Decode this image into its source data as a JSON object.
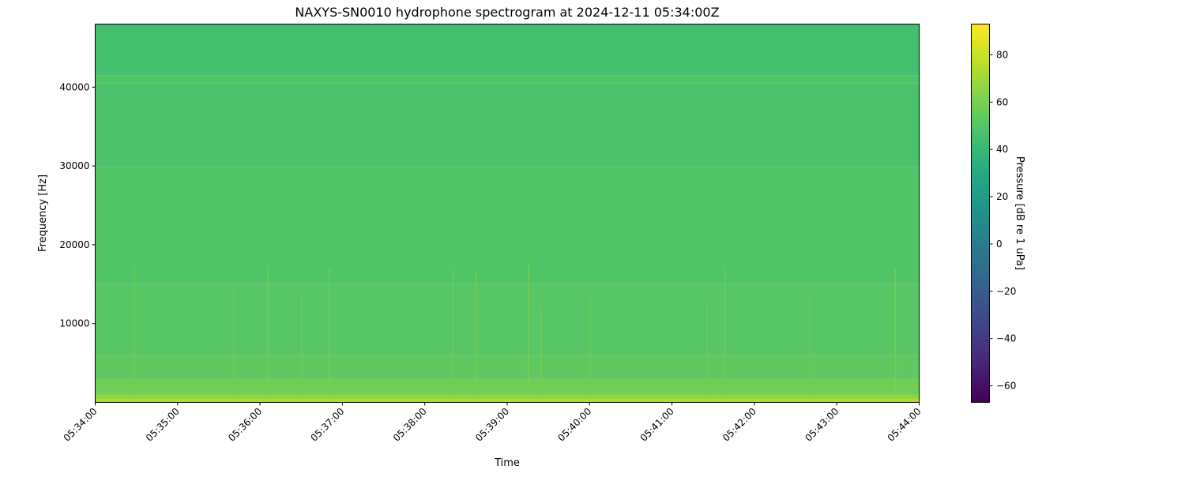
{
  "chart_data": {
    "type": "heatmap",
    "title": "NAXYS-SN0010 hydrophone spectrogram at 2024-12-11 05:34:00Z",
    "xlabel": "Time",
    "ylabel": "Frequency [Hz]",
    "colorbar_label": "Pressure [dB re 1 uPa]",
    "colormap": "viridis",
    "xlim": [
      "05:34:00",
      "05:44:00"
    ],
    "ylim": [
      0,
      48000
    ],
    "clim": [
      -67,
      93
    ],
    "x_ticks": [
      "05:34:00",
      "05:35:00",
      "05:36:00",
      "05:37:00",
      "05:38:00",
      "05:39:00",
      "05:40:00",
      "05:41:00",
      "05:42:00",
      "05:43:00",
      "05:44:00"
    ],
    "y_ticks": [
      10000,
      20000,
      30000,
      40000
    ],
    "y_tick_labels": [
      "10000",
      "20000",
      "30000",
      "40000"
    ],
    "colorbar_ticks": [
      -60,
      -40,
      -20,
      0,
      20,
      40,
      60,
      80
    ],
    "colorbar_tick_labels": [
      "−60",
      "−40",
      "−20",
      "0",
      "20",
      "40",
      "60",
      "80"
    ],
    "frequency_bands": [
      {
        "f_low": 0,
        "f_high": 500,
        "db": 72
      },
      {
        "f_low": 500,
        "f_high": 1000,
        "db": 66
      },
      {
        "f_low": 1000,
        "f_high": 3000,
        "db": 58
      },
      {
        "f_low": 3000,
        "f_high": 6000,
        "db": 53
      },
      {
        "f_low": 6000,
        "f_high": 15000,
        "db": 51
      },
      {
        "f_low": 15000,
        "f_high": 30000,
        "db": 49
      },
      {
        "f_low": 30000,
        "f_high": 40500,
        "db": 47
      },
      {
        "f_low": 40500,
        "f_high": 41500,
        "db": 49
      },
      {
        "f_low": 41500,
        "f_high": 48000,
        "db": 45
      }
    ],
    "transients": [
      {
        "time": "05:34:28",
        "f_high": 17000,
        "db": 58
      },
      {
        "time": "05:35:40",
        "f_high": 15000,
        "db": 57
      },
      {
        "time": "05:36:05",
        "f_high": 17500,
        "db": 60
      },
      {
        "time": "05:36:30",
        "f_high": 14000,
        "db": 58
      },
      {
        "time": "05:36:50",
        "f_high": 17000,
        "db": 60
      },
      {
        "time": "05:38:20",
        "f_high": 17000,
        "db": 58
      },
      {
        "time": "05:38:37",
        "f_high": 16500,
        "db": 61
      },
      {
        "time": "05:39:15",
        "f_high": 17500,
        "db": 62
      },
      {
        "time": "05:39:24",
        "f_high": 12000,
        "db": 60
      },
      {
        "time": "05:40:00",
        "f_high": 14000,
        "db": 57
      },
      {
        "time": "05:41:25",
        "f_high": 13000,
        "db": 57
      },
      {
        "time": "05:41:38",
        "f_high": 17000,
        "db": 59
      },
      {
        "time": "05:42:40",
        "f_high": 14000,
        "db": 57
      },
      {
        "time": "05:43:42",
        "f_high": 17000,
        "db": 62
      }
    ]
  }
}
